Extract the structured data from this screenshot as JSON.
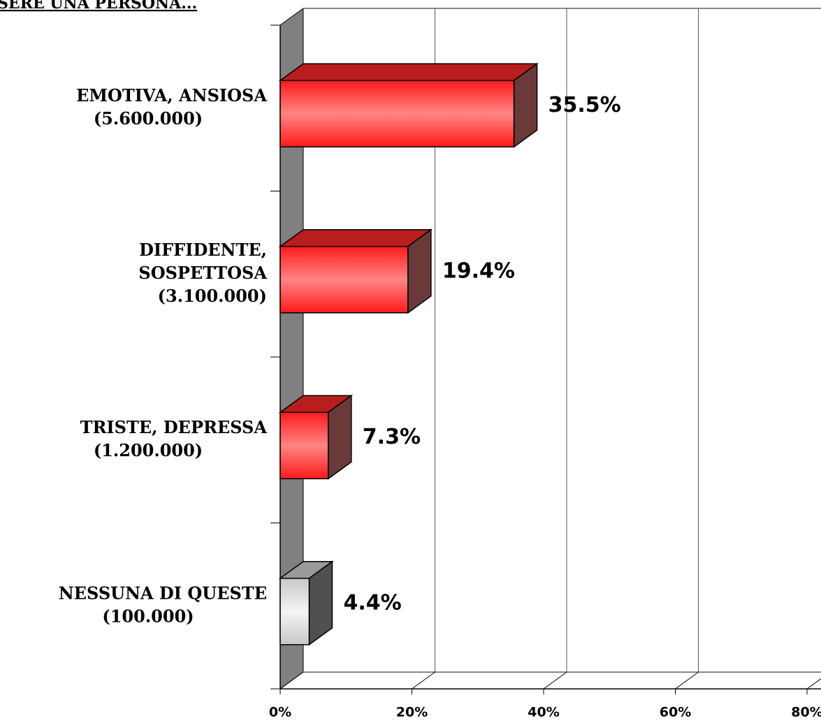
{
  "chart_data": {
    "type": "bar3d-horizontal",
    "title": "SERE UNA PERSONA...",
    "categories": [
      [
        "EMOTIVA, ANSIOSA",
        "(5.600.000)"
      ],
      [
        "DIFFIDENTE,",
        "SOSPETTOSA",
        "(3.100.000)"
      ],
      [
        "TRISTE, DEPRESSA",
        "(1.200.000)"
      ],
      [
        "NESSUNA DI QUESTE",
        "(100.000)"
      ]
    ],
    "values": [
      35.5,
      19.4,
      7.3,
      4.4
    ],
    "value_labels": [
      "35.5%",
      "19.4%",
      "7.3%",
      "4.4%"
    ],
    "colors": [
      "#ff2a2a",
      "#ff2a2a",
      "#ff2a2a",
      "#d8d8d8"
    ],
    "xlim": [
      0,
      80
    ],
    "xticks": [
      {
        "value": 0,
        "label": "0%"
      },
      {
        "value": 20,
        "label": "20%"
      },
      {
        "value": 40,
        "label": "40%"
      },
      {
        "value": 60,
        "label": "60%"
      },
      {
        "value": 80,
        "label": "80%"
      }
    ],
    "grid": true
  }
}
